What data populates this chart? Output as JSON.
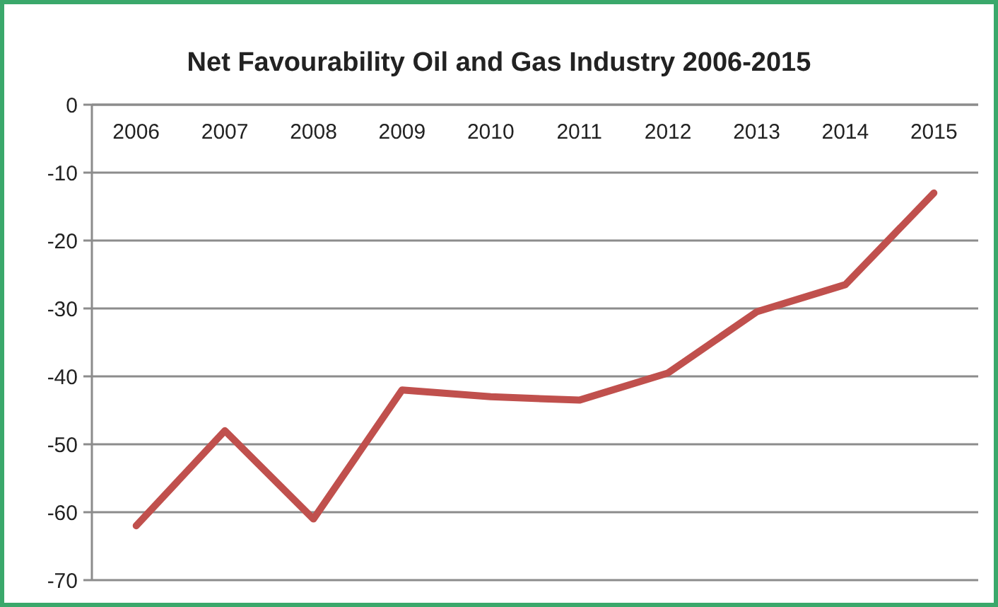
{
  "chart_data": {
    "type": "line",
    "title": "Net Favourability Oil and Gas Industry 2006-2015",
    "categories": [
      "2006",
      "2007",
      "2008",
      "2009",
      "2010",
      "2011",
      "2012",
      "2013",
      "2014",
      "2015"
    ],
    "series": [
      {
        "color": "#c0504d",
        "values": [
          -62,
          -48,
          -61,
          -42,
          -43,
          -43.5,
          -39.5,
          -30.5,
          -26.5,
          -13
        ]
      }
    ],
    "ylim": [
      -70,
      0
    ],
    "yticks": [
      0,
      -10,
      -20,
      -30,
      -40,
      -50,
      -60,
      -70
    ],
    "grid": "y",
    "marker": "none",
    "line_style": "solid"
  }
}
